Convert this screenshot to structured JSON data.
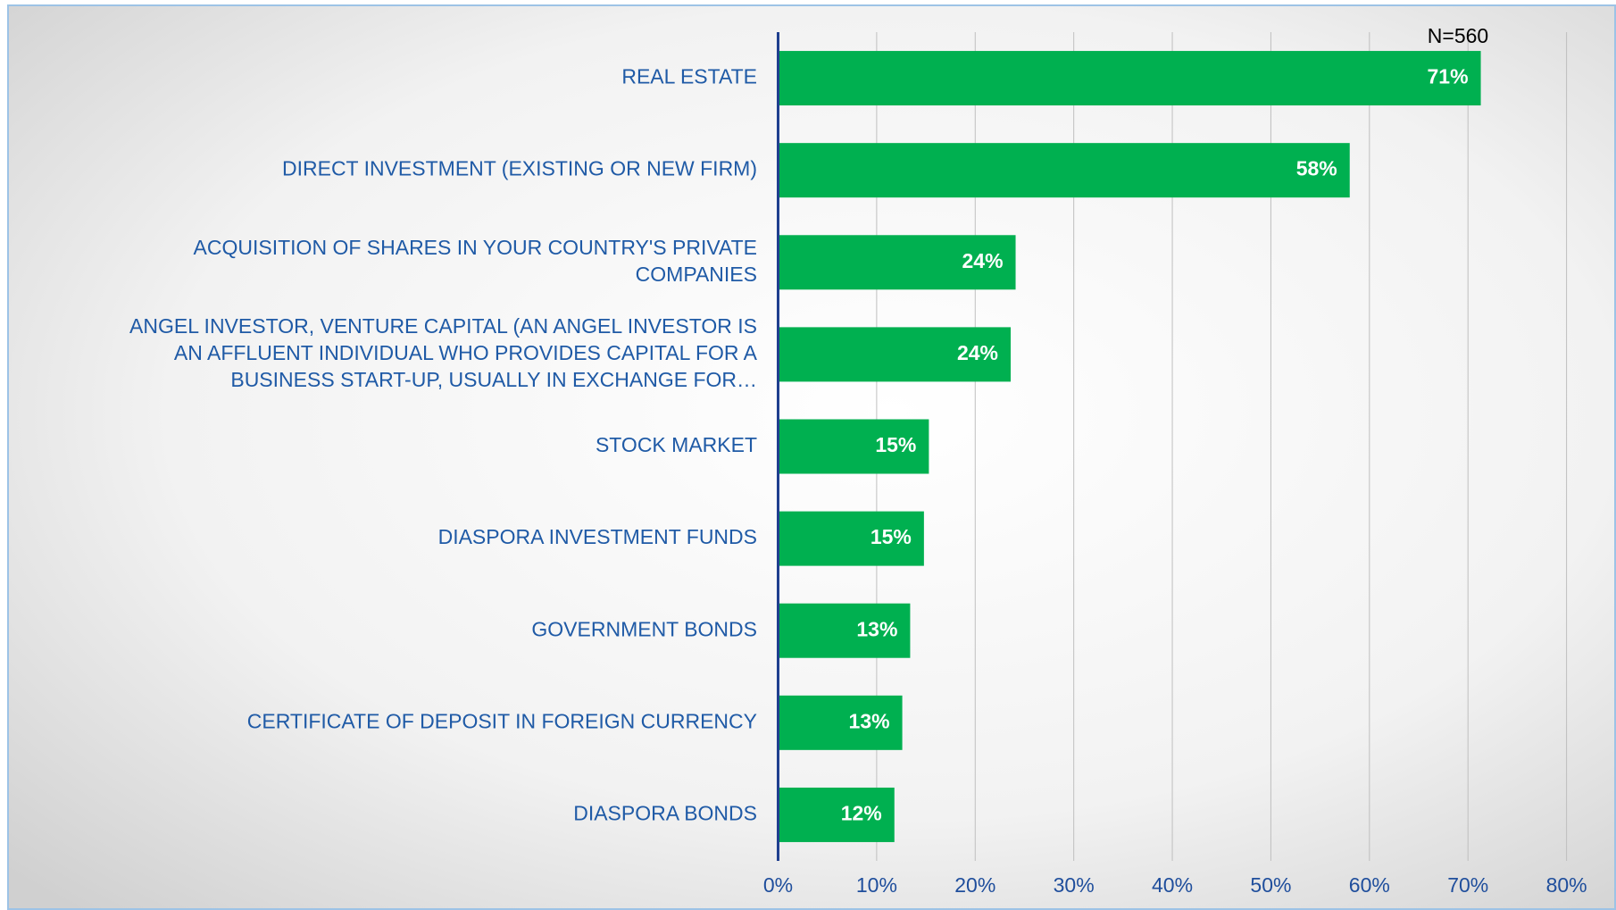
{
  "chart_data": {
    "type": "barh",
    "annotation": "N=560",
    "categories": [
      "REAL ESTATE",
      "DIRECT INVESTMENT (EXISTING OR NEW FIRM)",
      "ACQUISITION OF SHARES IN YOUR COUNTRY'S PRIVATE\nCOMPANIES",
      "ANGEL INVESTOR, VENTURE CAPITAL (AN ANGEL INVESTOR IS\nAN AFFLUENT INDIVIDUAL WHO PROVIDES CAPITAL FOR A\nBUSINESS START-UP, USUALLY IN EXCHANGE FOR…",
      "STOCK MARKET",
      "DIASPORA INVESTMENT FUNDS",
      "GOVERNMENT BONDS",
      "CERTIFICATE OF DEPOSIT IN FOREIGN CURRENCY",
      "DIASPORA BONDS"
    ],
    "values": [
      71.3,
      58,
      24.1,
      23.6,
      15.3,
      14.8,
      13.4,
      12.6,
      11.8
    ],
    "value_labels": [
      "71%",
      "58%",
      "24%",
      "24%",
      "15%",
      "15%",
      "13%",
      "13%",
      "12%"
    ],
    "color": "#00b050",
    "xlim": [
      0,
      80
    ],
    "xticks": [
      {
        "value": 0,
        "label": "0%"
      },
      {
        "value": 10,
        "label": "10%"
      },
      {
        "value": 20,
        "label": "20%"
      },
      {
        "value": 30,
        "label": "30%"
      },
      {
        "value": 40,
        "label": "40%"
      },
      {
        "value": 50,
        "label": "50%"
      },
      {
        "value": 60,
        "label": "60%"
      },
      {
        "value": 70,
        "label": "70%"
      },
      {
        "value": 80,
        "label": "80%"
      }
    ],
    "grid": true
  }
}
